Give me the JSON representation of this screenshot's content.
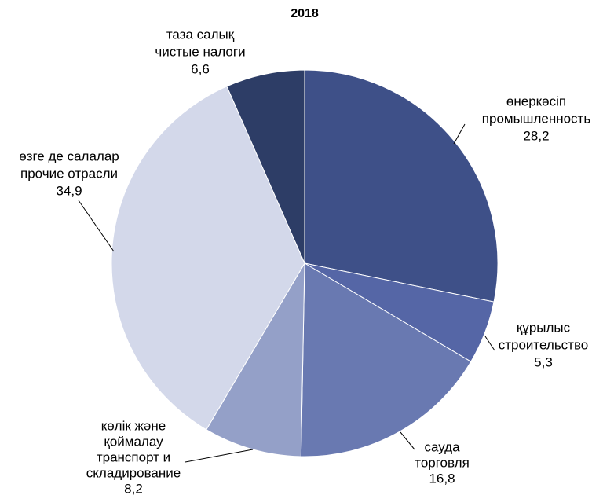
{
  "chart_data": {
    "type": "pie",
    "title": "2018",
    "categories": [
      [
        "өнеркәсіп",
        "промышленность"
      ],
      [
        "құрылыс",
        "строительство"
      ],
      [
        "сауда",
        "торговля"
      ],
      [
        "көлік және",
        "қоймалау",
        "транспорт и",
        "складирование"
      ],
      [
        "өзге де салалар",
        "прочие отрасли"
      ],
      [
        "таза салық",
        "чистые налоги"
      ]
    ],
    "values": [
      28.2,
      5.3,
      16.8,
      8.2,
      34.9,
      6.6
    ],
    "value_labels": [
      "28,2",
      "5,3",
      "16,8",
      "8,2",
      "34,9",
      "6,6"
    ],
    "colors": [
      "#3e5088",
      "#5566a6",
      "#6979b1",
      "#94a0c8",
      "#d3d8ea",
      "#2d3d66"
    ]
  }
}
